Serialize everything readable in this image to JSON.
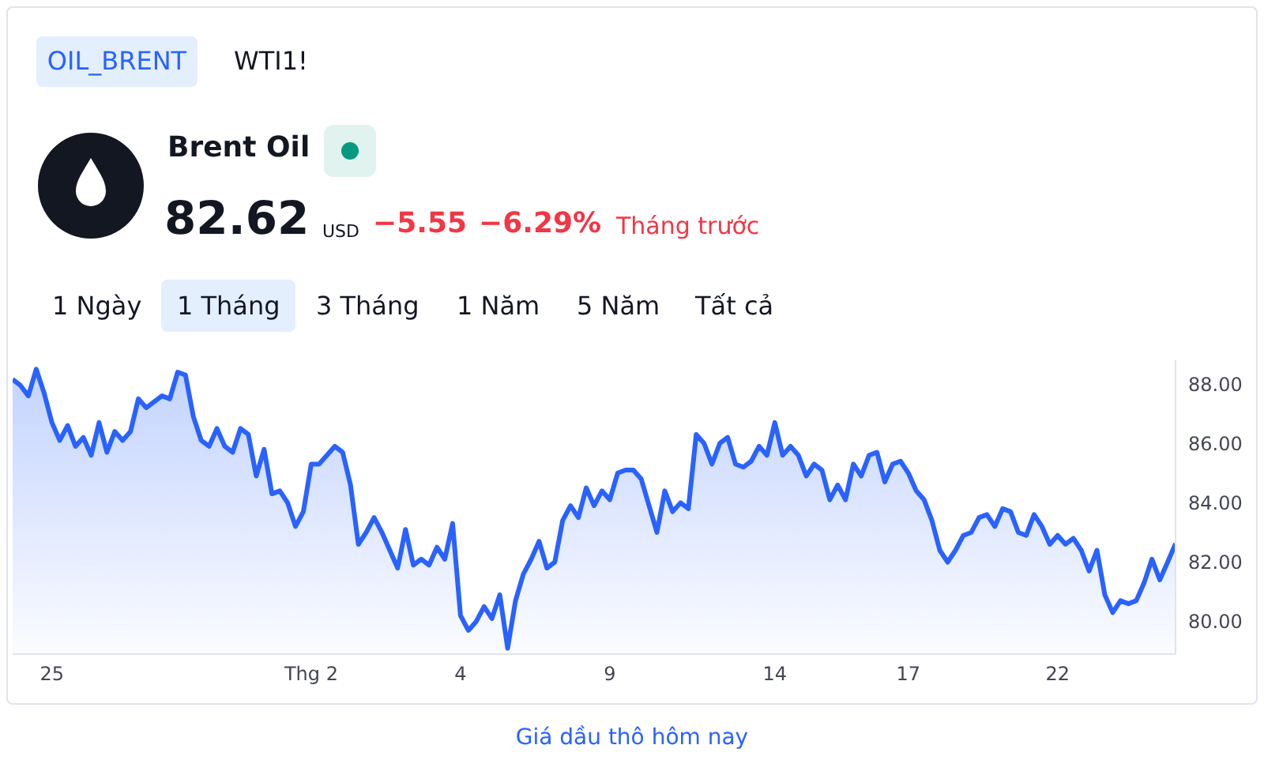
{
  "chart_data": {
    "type": "area",
    "title": "Brent Oil",
    "annotations": [
      "OIL_BRENT",
      "WTI1!",
      "82.62",
      "USD",
      "−5.55",
      "−6.29%",
      "Tháng trước",
      "1 Ngày",
      "1 Tháng",
      "3 Tháng",
      "1 Năm",
      "5 Năm",
      "Tất cả",
      "Giá dầu thô hôm nay"
    ],
    "categories": [
      null,
      null,
      null,
      null,
      null,
      "25",
      null,
      null,
      null,
      null,
      null,
      null,
      null,
      null,
      null,
      null,
      null,
      null,
      null,
      null,
      null,
      null,
      null,
      null,
      null,
      null,
      null,
      null,
      null,
      null,
      null,
      null,
      null,
      null,
      null,
      null,
      null,
      null,
      "Thg 2",
      null,
      null,
      null,
      null,
      null,
      null,
      null,
      null,
      null,
      null,
      null,
      null,
      null,
      null,
      null,
      null,
      null,
      null,
      "4",
      null,
      null,
      null,
      null,
      null,
      null,
      null,
      null,
      null,
      null,
      null,
      null,
      null,
      null,
      null,
      null,
      null,
      null,
      "9",
      null,
      null,
      null,
      null,
      null,
      null,
      null,
      null,
      null,
      null,
      null,
      null,
      null,
      null,
      null,
      null,
      null,
      null,
      null,
      null,
      "14",
      null,
      null,
      null,
      null,
      null,
      null,
      null,
      null,
      null,
      null,
      null,
      null,
      null,
      null,
      null,
      null,
      "17",
      null,
      null,
      null,
      null,
      null,
      null,
      null,
      null,
      null,
      null,
      null,
      null,
      null,
      null,
      null,
      null,
      null,
      null,
      "22",
      null,
      null,
      null,
      null,
      null,
      null,
      null,
      null,
      null,
      null,
      null,
      null,
      null,
      null,
      null
    ],
    "series": [
      {
        "color": "#2962ff",
        "values": [
          88.16,
          87.95,
          87.6,
          88.5,
          87.7,
          86.7,
          86.1,
          86.6,
          85.9,
          86.2,
          85.6,
          86.7,
          85.7,
          86.4,
          86.1,
          86.4,
          87.5,
          87.2,
          87.4,
          87.6,
          87.5,
          88.4,
          88.3,
          86.9,
          86.1,
          85.9,
          86.5,
          85.9,
          85.7,
          86.5,
          86.3,
          84.9,
          85.8,
          84.3,
          84.4,
          84.0,
          83.2,
          83.7,
          85.3,
          85.3,
          85.6,
          85.9,
          85.7,
          84.6,
          82.6,
          83.0,
          83.5,
          83.0,
          82.4,
          81.8,
          83.1,
          81.9,
          82.1,
          81.9,
          82.5,
          82.1,
          83.3,
          80.2,
          79.7,
          80.0,
          80.5,
          80.1,
          80.9,
          79.1,
          80.7,
          81.6,
          82.1,
          82.7,
          81.8,
          82.0,
          83.4,
          83.9,
          83.5,
          84.5,
          83.9,
          84.4,
          84.1,
          85.0,
          85.1,
          85.1,
          84.8,
          83.9,
          83.0,
          84.4,
          83.7,
          84.0,
          83.8,
          86.3,
          86.0,
          85.3,
          86.0,
          86.2,
          85.3,
          85.2,
          85.4,
          85.9,
          85.6,
          86.7,
          85.6,
          85.9,
          85.6,
          84.9,
          85.3,
          85.1,
          84.1,
          84.6,
          84.1,
          85.3,
          84.9,
          85.6,
          85.7,
          84.7,
          85.3,
          85.4,
          85.0,
          84.4,
          84.1,
          83.4,
          82.4,
          82.0,
          82.4,
          82.9,
          83.0,
          83.5,
          83.6,
          83.2,
          83.8,
          83.7,
          83.0,
          82.9,
          83.6,
          83.2,
          82.6,
          82.9,
          82.6,
          82.8,
          82.4,
          81.7,
          82.4,
          80.9,
          80.3,
          80.7,
          80.6,
          80.7,
          81.3,
          82.1,
          81.4,
          82.0,
          82.62
        ]
      }
    ],
    "ylim": [
      78.9,
      88.8
    ],
    "yticks": [
      {
        "value": 80,
        "label": "80.00"
      },
      {
        "value": 82,
        "label": "82.00"
      },
      {
        "value": 84,
        "label": "84.00"
      },
      {
        "value": 86,
        "label": "86.00"
      },
      {
        "value": 88,
        "label": "88.00"
      }
    ],
    "grid": false
  }
}
